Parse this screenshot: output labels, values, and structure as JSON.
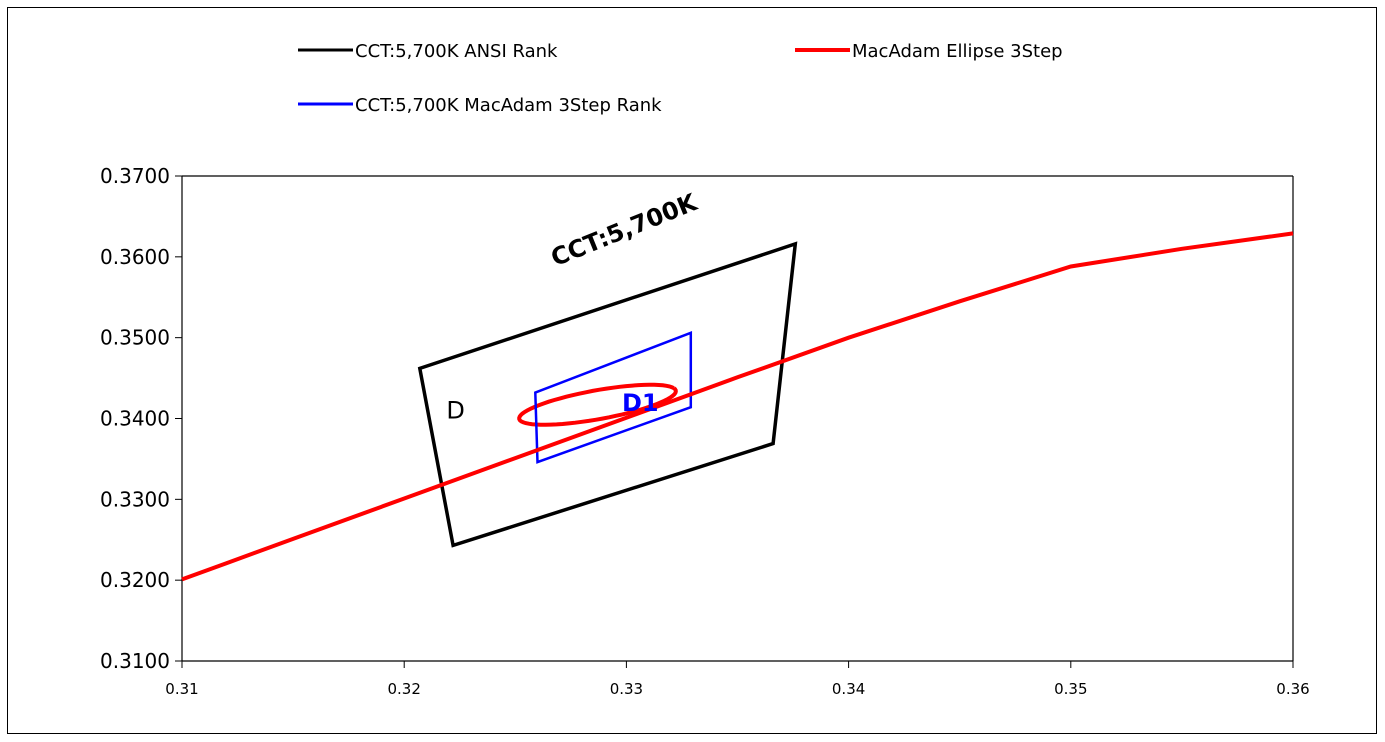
{
  "chart_data": {
    "type": "line",
    "xlim": [
      0.31,
      0.36
    ],
    "ylim": [
      0.31,
      0.37
    ],
    "x_ticks": [
      "0.31",
      "0.32",
      "0.33",
      "0.34",
      "0.35",
      "0.36"
    ],
    "y_ticks": [
      "0.3100",
      "0.3200",
      "0.3300",
      "0.3400",
      "0.3500",
      "0.3600",
      "0.3700"
    ],
    "grid": false,
    "legend": {
      "placement": "top"
    },
    "series": [
      {
        "name": "CCT:5,700K ANSI Rank",
        "color": "#000000",
        "closed": true,
        "points": [
          [
            0.3207,
            0.3462
          ],
          [
            0.3376,
            0.3616
          ],
          [
            0.3366,
            0.3369
          ],
          [
            0.3222,
            0.3243
          ]
        ]
      },
      {
        "name": "MacAdam Ellipse 3Step",
        "color": "#ff0000",
        "shape": "ellipse",
        "center": [
          0.3287,
          0.3417
        ],
        "semi_axis_a": 0.004,
        "semi_axis_b": 0.0016,
        "rotation_deg_data": 31
      },
      {
        "name": "CCT:5,700K MacAdam 3Step Rank",
        "color": "#0000ff",
        "closed": true,
        "points": [
          [
            0.3259,
            0.3432
          ],
          [
            0.3329,
            0.3506
          ],
          [
            0.3329,
            0.3414
          ],
          [
            0.326,
            0.3346
          ]
        ]
      },
      {
        "name": "",
        "color": "#ff0000",
        "points": [
          [
            0.31,
            0.3201
          ],
          [
            0.312,
            0.3221
          ],
          [
            0.315,
            0.3251
          ],
          [
            0.32,
            0.3301
          ],
          [
            0.325,
            0.3351
          ],
          [
            0.33,
            0.3401
          ],
          [
            0.335,
            0.3451
          ],
          [
            0.34,
            0.35
          ],
          [
            0.345,
            0.3545
          ],
          [
            0.35,
            0.3588
          ],
          [
            0.355,
            0.361
          ],
          [
            0.36,
            0.3629
          ]
        ]
      }
    ],
    "annotations": [
      {
        "text": "CCT:5,700K",
        "x": 0.3268,
        "y": 0.3588,
        "color": "#000000"
      },
      {
        "text": "D",
        "x": 0.3219,
        "y": 0.34,
        "color": "#000000"
      },
      {
        "text": "D1",
        "x": 0.3298,
        "y": 0.3409,
        "color": "#0000ff"
      }
    ]
  }
}
